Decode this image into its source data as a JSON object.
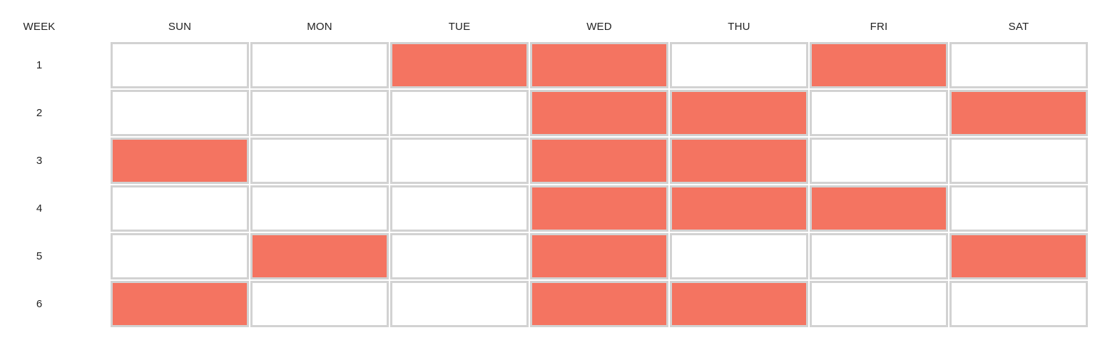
{
  "header": {
    "week_label": "WEEK",
    "days": [
      "SUN",
      "MON",
      "TUE",
      "WED",
      "THU",
      "FRI",
      "SAT"
    ]
  },
  "colors": {
    "active": "#f47461",
    "inactive": "#ffffff",
    "border": "#d2d2d2"
  },
  "weeks": [
    {
      "label": "1",
      "cells": [
        false,
        false,
        true,
        true,
        false,
        true,
        false
      ]
    },
    {
      "label": "2",
      "cells": [
        false,
        false,
        false,
        true,
        true,
        false,
        true
      ]
    },
    {
      "label": "3",
      "cells": [
        true,
        false,
        false,
        true,
        true,
        false,
        false
      ]
    },
    {
      "label": "4",
      "cells": [
        false,
        false,
        false,
        true,
        true,
        true,
        false
      ]
    },
    {
      "label": "5",
      "cells": [
        false,
        true,
        false,
        true,
        false,
        false,
        true
      ]
    },
    {
      "label": "6",
      "cells": [
        true,
        false,
        false,
        true,
        true,
        false,
        false
      ]
    }
  ]
}
